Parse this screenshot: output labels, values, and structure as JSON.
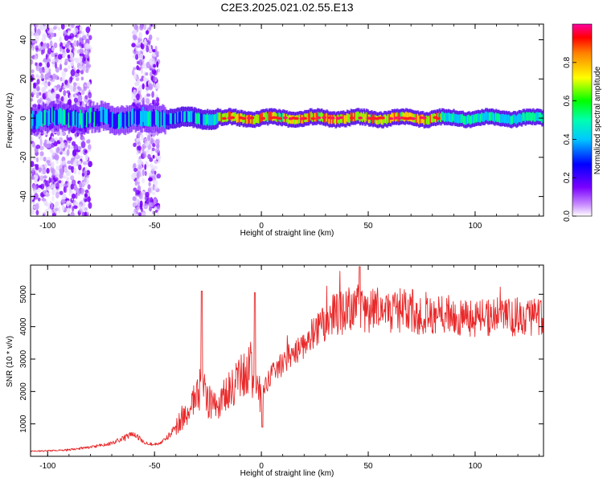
{
  "title": "C2E3.2025.021.02.55.E13",
  "colors": {
    "snr_line": "#e8292a",
    "spectrogram_low": "#8a2be2",
    "spectrogram_high": "#ff1a1a"
  },
  "chart_data": [
    {
      "type": "heatmap",
      "title": "",
      "xlabel": "Height of straight line (km)",
      "ylabel": "Frequency (Hz)",
      "xlim": [
        -108,
        132
      ],
      "ylim": [
        -50,
        48
      ],
      "xticks": [
        "-100",
        "-50",
        "0",
        "50",
        "100"
      ],
      "yticks": [
        "40",
        "20",
        "0",
        "-20",
        "-40"
      ],
      "colorbar": {
        "label": "Normalized spectral amplitude",
        "range": [
          0,
          1
        ],
        "ticks": [
          "0.0",
          "0.2",
          "0.4",
          "0.6",
          "0.8"
        ]
      },
      "features": {
        "broadband_noise_x_ranges": [
          [
            -108,
            -80
          ],
          [
            -60,
            -48
          ]
        ],
        "band_center_hz": 0,
        "band_halfwidth_hz": 4,
        "strongest_x_range": [
          -20,
          85
        ]
      }
    },
    {
      "type": "line",
      "title": "",
      "xlabel": "Height of straight line (km)",
      "ylabel": "SNR (10 * v/v)",
      "xlim": [
        -108,
        132
      ],
      "ylim": [
        0,
        5900
      ],
      "xticks": [
        "-100",
        "-50",
        "0",
        "50",
        "100"
      ],
      "yticks": [
        "1000",
        "2000",
        "3000",
        "4000",
        "5000"
      ],
      "series": [
        {
          "x": [
            -108,
            -100,
            -90,
            -80,
            -70,
            -65,
            -60,
            -55,
            -50,
            -45,
            -40,
            -35,
            -30,
            -28,
            -25,
            -20,
            -15,
            -10,
            -5,
            -3,
            0,
            1,
            5,
            10,
            15,
            20,
            25,
            30,
            35,
            40,
            45,
            50,
            55,
            60,
            70,
            80,
            90,
            100,
            110,
            120,
            132
          ],
          "y": [
            150,
            170,
            200,
            280,
            400,
            550,
            700,
            450,
            350,
            500,
            900,
            1400,
            1900,
            2200,
            1700,
            1600,
            2000,
            2400,
            2700,
            2400,
            1700,
            2000,
            2600,
            2900,
            3200,
            3500,
            3850,
            4150,
            4350,
            4500,
            4600,
            4550,
            4500,
            4500,
            4450,
            4400,
            4350,
            4250,
            4300,
            4300,
            4350
          ]
        }
      ]
    }
  ]
}
